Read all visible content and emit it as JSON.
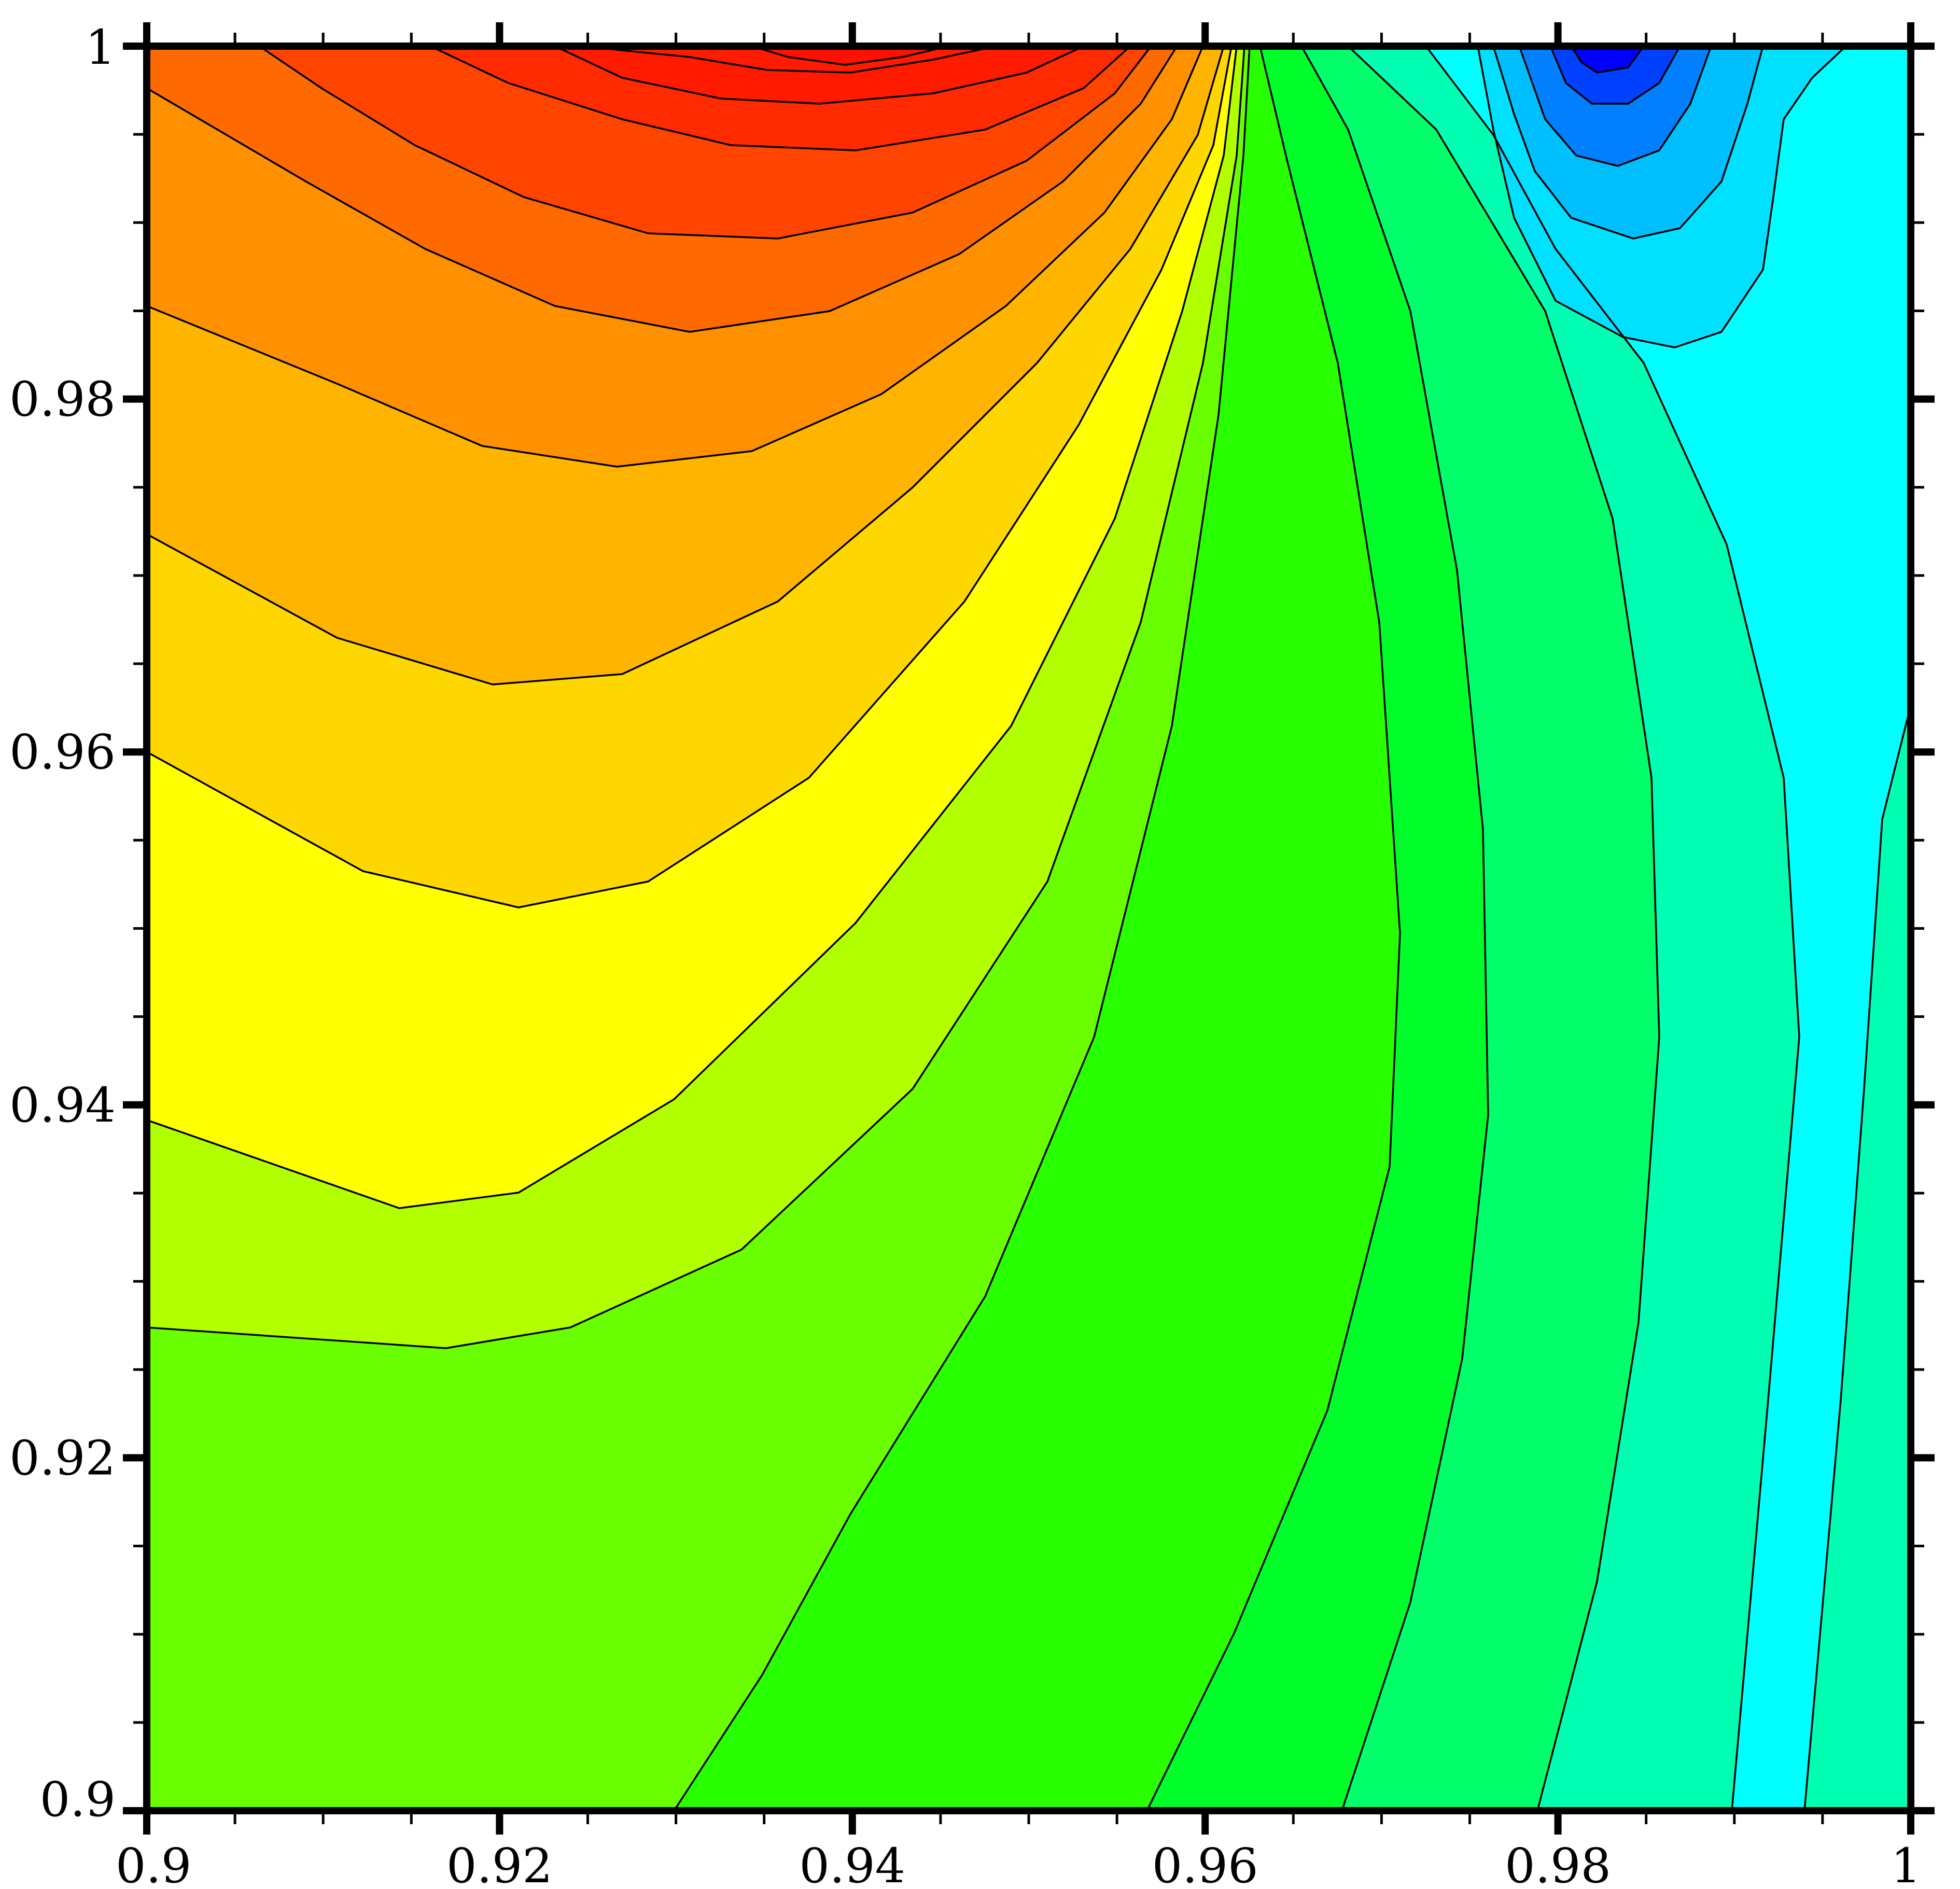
{
  "chart_data": {
    "type": "contour",
    "title": "",
    "xlabel": "",
    "ylabel": "",
    "xlim": [
      0.9,
      1.0
    ],
    "ylim": [
      0.9,
      1.0
    ],
    "x_ticks": [
      0.9,
      0.92,
      0.94,
      0.96,
      0.98,
      1.0
    ],
    "y_ticks": [
      0.9,
      0.92,
      0.94,
      0.96,
      0.98,
      1.0
    ],
    "x_tick_labels": [
      "0.9",
      "0.92",
      "0.94",
      "0.96",
      "0.98",
      "1"
    ],
    "y_tick_labels": [
      "0.9",
      "0.92",
      "0.94",
      "0.96",
      "0.98",
      "1"
    ],
    "minor_ticks_per_interval": 4,
    "grid": false,
    "legend": "none",
    "colormap": [
      "#0000ff",
      "#0040ff",
      "#0080ff",
      "#00bfff",
      "#00e0ff",
      "#00ffff",
      "#00ffb2",
      "#00ff6a",
      "#00ff2a",
      "#28ff00",
      "#6aff00",
      "#b2ff00",
      "#ffff00",
      "#ffd700",
      "#ffb400",
      "#ff9000",
      "#ff6a00",
      "#ff4400",
      "#ff1a00"
    ],
    "fill_levels": [
      {
        "region": "lower-left background",
        "color": "#28ff00"
      },
      {
        "region": "left band",
        "color": "#6aff00"
      },
      {
        "region": "left band",
        "color": "#b2ff00"
      },
      {
        "region": "upper-left band",
        "color": "#ffff00"
      },
      {
        "region": "upper-left band",
        "color": "#ffd700"
      },
      {
        "region": "top band",
        "color": "#ffb400"
      },
      {
        "region": "top band",
        "color": "#ff9000"
      },
      {
        "region": "top band",
        "color": "#ff6a00"
      },
      {
        "region": "top band",
        "color": "#ff4400"
      },
      {
        "region": "maximum near (0.94, 1.0)",
        "color": "#ff1a00"
      },
      {
        "region": "middle band",
        "color": "#00ff2a"
      },
      {
        "region": "middle band",
        "color": "#00ff6a"
      },
      {
        "region": "right-middle band",
        "color": "#00ffb2"
      },
      {
        "region": "right band",
        "color": "#00ffff"
      },
      {
        "region": "upper-right lobe",
        "color": "#00e0ff"
      },
      {
        "region": "upper-right lobe",
        "color": "#00bfff"
      },
      {
        "region": "upper-right lobe",
        "color": "#0080ff"
      },
      {
        "region": "upper-right lobe",
        "color": "#0040ff"
      },
      {
        "region": "minimum near (0.98, 1.0)",
        "color": "#0000ff"
      }
    ],
    "extrema": [
      {
        "kind": "maximum",
        "x": 0.94,
        "y": 1.0,
        "color": "#ff1a00"
      },
      {
        "kind": "minimum",
        "x": 0.981,
        "y": 1.0,
        "color": "#0000ff"
      }
    ]
  }
}
